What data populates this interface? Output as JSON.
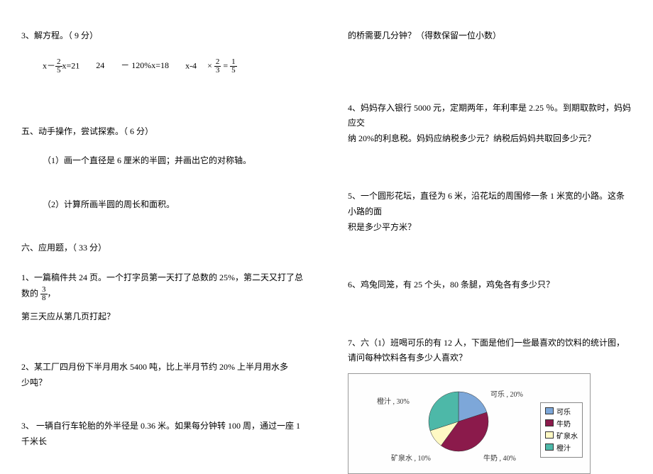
{
  "left": {
    "q3_title": "3、解方程。（  9 分）",
    "eq1_a": "x－",
    "eq1_frac_n": "2",
    "eq1_frac_d": "5",
    "eq1_b": "x=21",
    "eq2": "24",
    "eq3": "－ 120%x=18",
    "eq4_a": "x-4",
    "eq4_b": "×",
    "eq4_frac1_n": "2",
    "eq4_frac1_d": "3",
    "eq4_c": "=",
    "eq4_frac2_n": "1",
    "eq4_frac2_d": "5",
    "sec5": "五、动手操作，尝试探索。（    6 分）",
    "sec5_1": "（1）画一个直径是    6 厘米的半圆；并画出它的对称轴。",
    "sec5_2": "（2）计算所画半圆的周长和面积。",
    "sec6": "六、应用题，（  33 分）",
    "sec6_1a": "1、一篇稿件共    24 页。一个打字员第一天打了总数的    25%，第二天又打了总数的 ",
    "sec6_1_frac_n": "3",
    "sec6_1_frac_d": "8",
    "sec6_1b": "，",
    "sec6_1c": "第三天应从第几页打起？",
    "sec6_2a": "2、某工厂四月份下半月用水    5400 吨，比上半月节约    20%  上半月用水多",
    "sec6_2b": "少吨？",
    "sec6_3": "3、 一辆自行车轮胎的外半径是    0.36 米。如果每分钟转    100 周，通过一座  1 千米长"
  },
  "right": {
    "cont3": "的桥需要几分钟？（得数保留一位小数）",
    "q4a": "4、妈妈存入银行    5000 元，定期两年，年利率是    2.25 ％。到期取款时，妈妈应交",
    "q4b": "纳 20%的利息税。妈妈应纳税多少元？纳税后妈妈共取回多少元？",
    "q5a": "5、一个圆形花坛，直径为    6 米，沿花坛的周围修一条    1 米宽的小路。这条小路的面",
    "q5b": "积是多少平方米？",
    "q6": "6、鸡兔同笼，有  25 个头，80 条腿，鸡兔各有多少只？",
    "q7a": "7、六（1）班喝可乐的有  12 人，下面是他们一些最喜欢的饮料的统计图，",
    "q7b": "请问每种饮料各有多少人喜欢？"
  },
  "chart": {
    "type": "pie",
    "slices": [
      {
        "label": "可乐",
        "pct": 20,
        "color": "#7da7d9",
        "legend": "可乐",
        "display": "可乐 , 20%"
      },
      {
        "label": "牛奶",
        "pct": 40,
        "color": "#8b1a4b",
        "legend": "牛奶",
        "display": "牛奶 , 40%"
      },
      {
        "label": "矿泉水",
        "pct": 10,
        "color": "#fff9c4",
        "legend": "矿泉水",
        "display": "矿泉水 , 10%"
      },
      {
        "label": "橙汁",
        "pct": 30,
        "color": "#4db8a8",
        "legend": "橙汁",
        "display": "橙汁 , 30%"
      }
    ],
    "border_color": "#999999",
    "label_fontsize": 10,
    "legend_fontsize": 10,
    "radius": 42
  }
}
